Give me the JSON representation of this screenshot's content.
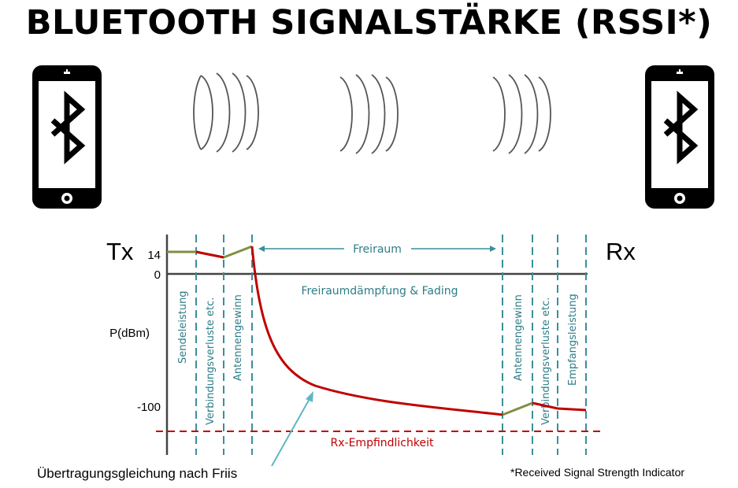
{
  "title": "BLUETOOTH SIGNALSTÄRKE (RSSI*)",
  "devices": [
    {
      "side": "Tx",
      "icon": "bluetooth-phone-icon"
    },
    {
      "side": "Rx",
      "icon": "bluetooth-phone-icon"
    }
  ],
  "waves_icon": "signal-wave-icon",
  "diagram": {
    "tx_label": "Tx",
    "rx_label": "Rx",
    "y_axis_label": "P(dBm)",
    "y_ticks": [
      "14",
      "0",
      "-100"
    ],
    "stages_tx": [
      "Sendeleistung",
      "Verbindungsverluste etc.",
      "Antennengewinn"
    ],
    "stages_rx": [
      "Antennengewinn",
      "Verbindungsverluste etc.",
      "Empfangsleistung"
    ],
    "freespace_label": "Freiraum",
    "freespace_loss_label": "Freiraumdämpfung & Fading",
    "sensitivity_label": "Rx-Empfindlichkeit",
    "friis_label": "Übertragungsgleichung nach Friis",
    "colors": {
      "gain_line": "#7f9040",
      "signal_line": "#c00000",
      "sensitivity_line": "#c00000",
      "divider": "#3a8f9a",
      "text_teal": "#2e7d86"
    }
  },
  "footnote": "*Received Signal Strength Indicator"
}
